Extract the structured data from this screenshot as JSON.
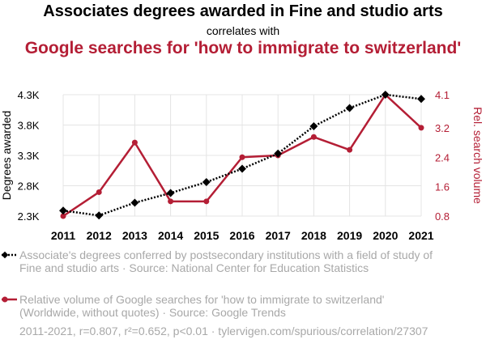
{
  "chart_data": {
    "type": "line",
    "title": "Associates degrees awarded in Fine and studio arts",
    "subtitle": "correlates with",
    "title2": "Google searches for 'how to immigrate to switzerland'",
    "categories": [
      "2011",
      "2012",
      "2013",
      "2014",
      "2015",
      "2016",
      "2017",
      "2018",
      "2019",
      "2020",
      "2021"
    ],
    "series": [
      {
        "name": "Associate's degrees conferred by postsecondary institutions with a field of study of Fine and studio arts · Source: National Center for Education Statistics",
        "axis": "left",
        "color": "#000000",
        "marker": "diamond",
        "style": "dotted",
        "values": [
          2390,
          2310,
          2520,
          2680,
          2860,
          3080,
          3330,
          3780,
          4080,
          4300,
          4230
        ]
      },
      {
        "name": "Relative volume of Google searches for 'how to immigrate to switzerland' (Worldwide, without quotes) · Source: Google Trends",
        "axis": "right",
        "color": "#b41e35",
        "marker": "circle",
        "style": "solid",
        "values": [
          0.8,
          1.45,
          2.8,
          1.2,
          1.2,
          2.4,
          2.45,
          2.95,
          2.6,
          4.1,
          3.2
        ]
      }
    ],
    "ylabel": "Degrees awarded",
    "y2label": "Rel. search volume",
    "yticks": [
      "4.3K",
      "3.8K",
      "3.3K",
      "2.8K",
      "2.3K"
    ],
    "ytick_values": [
      4300,
      3800,
      3300,
      2800,
      2300
    ],
    "y2ticks": [
      "4.1",
      "3.2",
      "2.4",
      "1.6",
      "0.8"
    ],
    "y2tick_values": [
      4.1,
      3.2,
      2.4,
      1.6,
      0.8
    ],
    "ylim": [
      2300,
      4300
    ],
    "y2lim": [
      0.8,
      4.1
    ],
    "grid": true
  },
  "legend": {
    "series1": "Associate's degrees conferred by postsecondary institutions with a field of study of Fine and studio arts · Source: National Center for Education Statistics",
    "series2": "Relative volume of Google searches for 'how to immigrate to switzerland' (Worldwide, without quotes) · Source: Google Trends"
  },
  "footer": "2011-2021, r=0.807, r²=0.652, p<0.01 · tylervigen.com/spurious/correlation/27307"
}
